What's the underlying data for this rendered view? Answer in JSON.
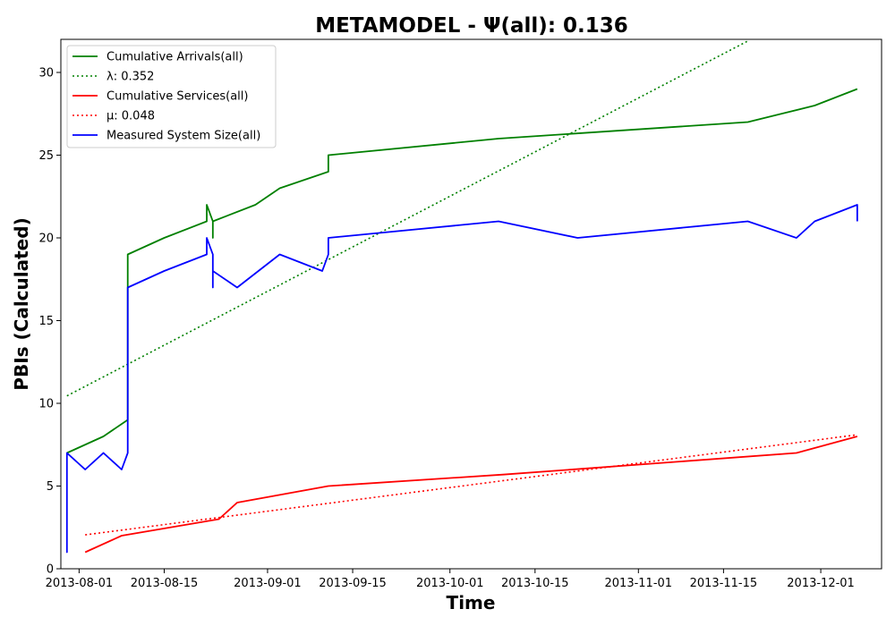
{
  "chart_data": {
    "type": "line",
    "title": "METAMODEL -  Ψ(all): 0.136",
    "xlabel": "Time",
    "ylabel": "PBIs (Calculated)",
    "xlim": [
      "2013-07-29",
      "2013-12-11"
    ],
    "ylim": [
      0,
      32
    ],
    "x_ticks": [
      "2013-08-01",
      "2013-08-15",
      "2013-09-01",
      "2013-09-15",
      "2013-10-01",
      "2013-10-15",
      "2013-11-01",
      "2013-11-15",
      "2013-12-01"
    ],
    "y_ticks": [
      0,
      5,
      10,
      15,
      20,
      25,
      30
    ],
    "grid": false,
    "legend_position": "upper-left",
    "series": [
      {
        "name": "Cumulative Arrivals(all)",
        "color": "#008000",
        "style": "solid",
        "points": [
          [
            "2013-07-30",
            7
          ],
          [
            "2013-08-05",
            8
          ],
          [
            "2013-08-09",
            9
          ],
          [
            "2013-08-09",
            19
          ],
          [
            "2013-08-15",
            20
          ],
          [
            "2013-08-22",
            21
          ],
          [
            "2013-08-22",
            22
          ],
          [
            "2013-08-23",
            21
          ],
          [
            "2013-08-23",
            20
          ],
          [
            "2013-08-23",
            21
          ],
          [
            "2013-08-30",
            22
          ],
          [
            "2013-09-03",
            23
          ],
          [
            "2013-09-11",
            24
          ],
          [
            "2013-09-11",
            25
          ],
          [
            "2013-10-09",
            26
          ],
          [
            "2013-11-19",
            27
          ],
          [
            "2013-11-30",
            28
          ],
          [
            "2013-12-07",
            29
          ]
        ]
      },
      {
        "name": "λ: 0.352",
        "color": "#008000",
        "style": "dotted",
        "points": [
          [
            "2013-07-30",
            10.45
          ],
          [
            "2013-11-19",
            31.9
          ]
        ]
      },
      {
        "name": "Cumulative Services(all)",
        "color": "#ff0000",
        "style": "solid",
        "points": [
          [
            "2013-08-02",
            1
          ],
          [
            "2013-08-08",
            2
          ],
          [
            "2013-08-24",
            3
          ],
          [
            "2013-08-27",
            4
          ],
          [
            "2013-09-11",
            5
          ],
          [
            "2013-10-10",
            5.7
          ],
          [
            "2013-11-27",
            7
          ],
          [
            "2013-12-07",
            8
          ]
        ]
      },
      {
        "name": "μ: 0.048",
        "color": "#ff0000",
        "style": "dotted",
        "points": [
          [
            "2013-08-02",
            2.05
          ],
          [
            "2013-12-07",
            8.1
          ]
        ]
      },
      {
        "name": "Measured System Size(all)",
        "color": "#0000ff",
        "style": "solid",
        "points": [
          [
            "2013-07-30",
            1
          ],
          [
            "2013-07-30",
            2
          ],
          [
            "2013-07-30",
            1
          ],
          [
            "2013-07-30",
            7
          ],
          [
            "2013-08-02",
            6
          ],
          [
            "2013-08-05",
            7
          ],
          [
            "2013-08-08",
            6
          ],
          [
            "2013-08-09",
            7
          ],
          [
            "2013-08-09",
            17
          ],
          [
            "2013-08-15",
            18
          ],
          [
            "2013-08-22",
            19
          ],
          [
            "2013-08-22",
            20
          ],
          [
            "2013-08-23",
            19
          ],
          [
            "2013-08-23",
            17
          ],
          [
            "2013-08-23",
            18
          ],
          [
            "2013-08-27",
            17
          ],
          [
            "2013-09-03",
            19
          ],
          [
            "2013-09-10",
            18
          ],
          [
            "2013-09-11",
            19
          ],
          [
            "2013-09-11",
            20
          ],
          [
            "2013-10-09",
            21
          ],
          [
            "2013-10-22",
            20
          ],
          [
            "2013-11-19",
            21
          ],
          [
            "2013-11-27",
            20
          ],
          [
            "2013-11-30",
            21
          ],
          [
            "2013-12-07",
            22
          ],
          [
            "2013-12-07",
            21
          ]
        ]
      }
    ]
  }
}
